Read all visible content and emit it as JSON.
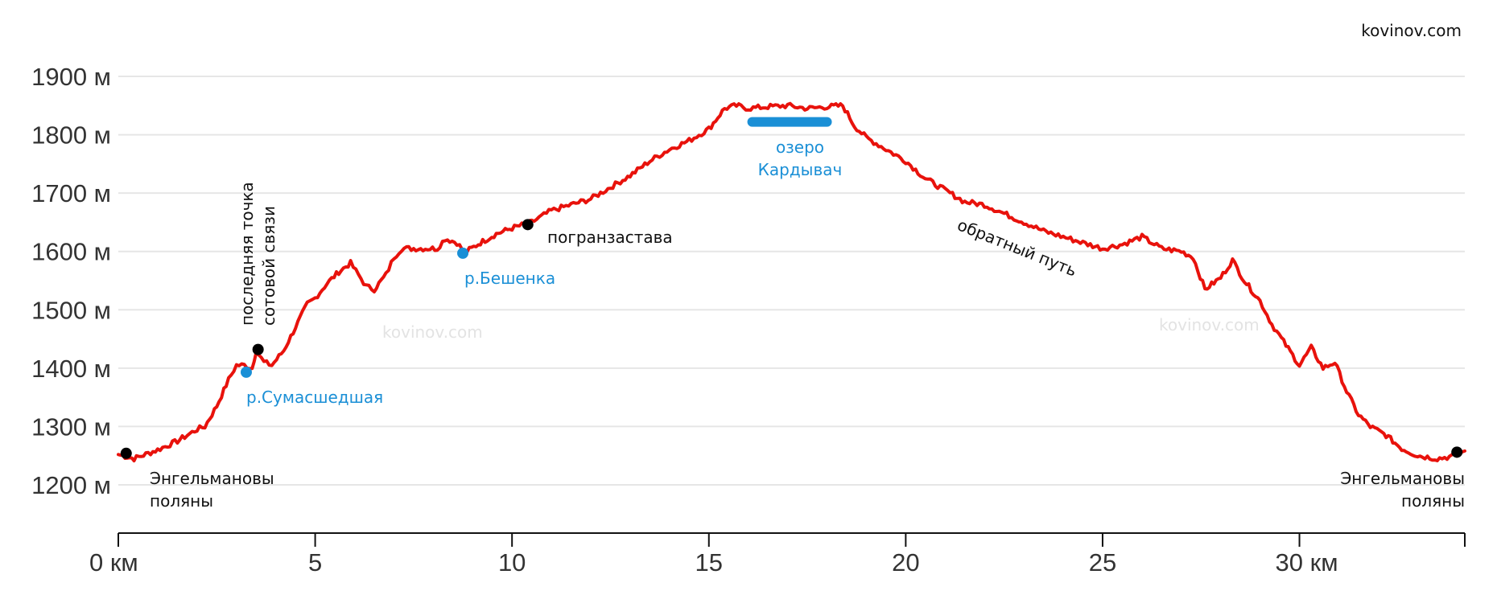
{
  "site_label": "kovinov.com",
  "watermarks": [
    "kovinov.com",
    "kovinov.com"
  ],
  "chart_data": {
    "type": "line",
    "title": "",
    "xlabel": "",
    "ylabel": "",
    "xlim": [
      0,
      34.2
    ],
    "ylim": [
      1200,
      1900
    ],
    "grid": true,
    "x_ticks": [
      {
        "value": 0,
        "label": "0 км"
      },
      {
        "value": 5,
        "label": "5"
      },
      {
        "value": 10,
        "label": "10"
      },
      {
        "value": 15,
        "label": "15"
      },
      {
        "value": 20,
        "label": "20"
      },
      {
        "value": 25,
        "label": "25"
      },
      {
        "value": 30,
        "label": "30 км"
      }
    ],
    "y_ticks": [
      {
        "value": 1200,
        "label": "1200 м"
      },
      {
        "value": 1300,
        "label": "1300 м"
      },
      {
        "value": 1400,
        "label": "1400 м"
      },
      {
        "value": 1500,
        "label": "1500 м"
      },
      {
        "value": 1600,
        "label": "1600 м"
      },
      {
        "value": 1700,
        "label": "1700 м"
      },
      {
        "value": 1800,
        "label": "1800 м"
      },
      {
        "value": 1900,
        "label": "1900 м"
      }
    ],
    "series": [
      {
        "color": "#e8120c",
        "x": [
          0,
          0.4,
          1.0,
          1.5,
          2.0,
          2.2,
          2.5,
          2.8,
          3.0,
          3.2,
          3.4,
          3.5,
          3.7,
          3.9,
          4.2,
          4.5,
          4.8,
          5.0,
          5.3,
          5.6,
          5.9,
          6.1,
          6.3,
          6.5,
          6.8,
          7.0,
          7.2,
          7.5,
          7.8,
          8.1,
          8.3,
          8.6,
          8.8,
          9.2,
          9.6,
          10.0,
          10.5,
          11.0,
          11.5,
          12.0,
          12.5,
          13.0,
          13.5,
          14.0,
          14.5,
          15.0,
          15.4,
          15.7,
          16.0,
          16.5,
          17.0,
          17.5,
          18.0,
          18.4,
          18.7,
          19.0,
          19.5,
          20.0,
          20.5,
          21.0,
          21.5,
          22.0,
          22.5,
          23.0,
          23.5,
          24.0,
          24.5,
          25.0,
          25.5,
          26.0,
          26.5,
          27.0,
          27.3,
          27.6,
          28.0,
          28.3,
          28.6,
          29.0,
          29.3,
          29.6,
          30.0,
          30.3,
          30.6,
          30.9,
          31.2,
          31.5,
          31.8,
          32.2,
          32.6,
          33.0,
          33.5,
          34.0,
          34.2
        ],
        "values": [
          1252,
          1245,
          1260,
          1275,
          1295,
          1300,
          1335,
          1380,
          1405,
          1405,
          1400,
          1430,
          1410,
          1405,
          1430,
          1470,
          1510,
          1520,
          1545,
          1565,
          1580,
          1560,
          1540,
          1535,
          1560,
          1590,
          1605,
          1605,
          1605,
          1605,
          1622,
          1615,
          1598,
          1615,
          1630,
          1640,
          1650,
          1670,
          1680,
          1690,
          1710,
          1730,
          1755,
          1775,
          1790,
          1810,
          1845,
          1850,
          1845,
          1848,
          1850,
          1845,
          1848,
          1850,
          1815,
          1795,
          1775,
          1755,
          1725,
          1705,
          1685,
          1680,
          1665,
          1650,
          1635,
          1625,
          1615,
          1605,
          1612,
          1625,
          1605,
          1600,
          1590,
          1535,
          1555,
          1585,
          1550,
          1515,
          1475,
          1445,
          1405,
          1435,
          1400,
          1410,
          1360,
          1320,
          1300,
          1285,
          1262,
          1250,
          1245,
          1250,
          1258
        ]
      }
    ],
    "markers": [
      {
        "x": 0.2,
        "y": 1254,
        "color": "#000000"
      },
      {
        "x": 3.25,
        "y": 1393,
        "color": "#1a8fd6"
      },
      {
        "x": 3.55,
        "y": 1432,
        "color": "#000000"
      },
      {
        "x": 8.75,
        "y": 1597,
        "color": "#1a8fd6"
      },
      {
        "x": 10.4,
        "y": 1646,
        "color": "#000000"
      },
      {
        "x": 34.0,
        "y": 1256,
        "color": "#000000"
      }
    ],
    "lake_segment": {
      "x_start": 16.1,
      "x_end": 18.0,
      "y": 1822,
      "color": "#1a8fd6"
    },
    "annotations": {
      "start": [
        "Энгельмановы",
        "поляны"
      ],
      "end": [
        "Энгельмановы",
        "поляны"
      ],
      "cell_signal": [
        "последняя точка",
        "сотовой связи"
      ],
      "river1": "р.Сумасшедшая",
      "river2": "р.Бешенка",
      "border_post": "погранзастава",
      "lake": [
        "озеро",
        "Кардывач"
      ],
      "return_path": "обратный путь"
    }
  }
}
